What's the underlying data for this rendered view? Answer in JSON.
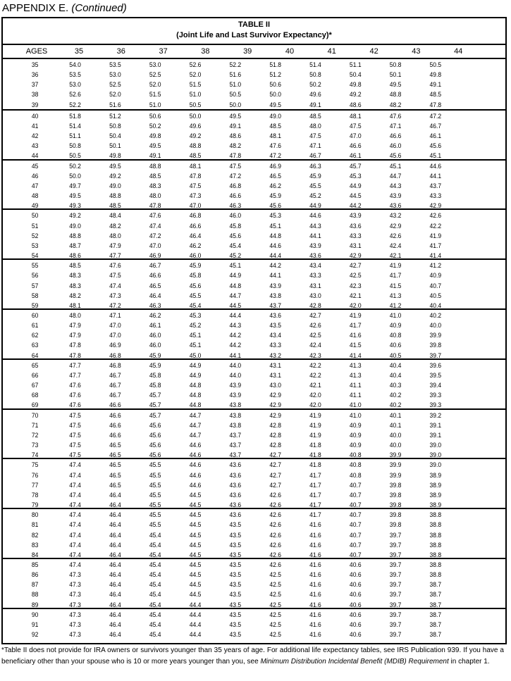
{
  "heading": {
    "main": "APPENDIX E.",
    "sub": "(Continued)"
  },
  "table": {
    "title": "TABLE II",
    "subtitle": "(Joint Life and Last Survivor Expectancy)*",
    "columns": [
      "AGES",
      "35",
      "36",
      "37",
      "38",
      "39",
      "40",
      "41",
      "42",
      "43",
      "44"
    ],
    "rows": [
      [
        "35",
        "54.0",
        "53.5",
        "53.0",
        "52.6",
        "52.2",
        "51.8",
        "51.4",
        "51.1",
        "50.8",
        "50.5"
      ],
      [
        "36",
        "53.5",
        "53.0",
        "52.5",
        "52.0",
        "51.6",
        "51.2",
        "50.8",
        "50.4",
        "50.1",
        "49.8"
      ],
      [
        "37",
        "53.0",
        "52.5",
        "52.0",
        "51.5",
        "51.0",
        "50.6",
        "50.2",
        "49.8",
        "49.5",
        "49.1"
      ],
      [
        "38",
        "52.6",
        "52.0",
        "51.5",
        "51.0",
        "50.5",
        "50.0",
        "49.6",
        "49.2",
        "48.8",
        "48.5"
      ],
      [
        "39",
        "52.2",
        "51.6",
        "51.0",
        "50.5",
        "50.0",
        "49.5",
        "49.1",
        "48.6",
        "48.2",
        "47.8"
      ],
      [
        "40",
        "51.8",
        "51.2",
        "50.6",
        "50.0",
        "49.5",
        "49.0",
        "48.5",
        "48.1",
        "47.6",
        "47.2"
      ],
      [
        "41",
        "51.4",
        "50.8",
        "50.2",
        "49.6",
        "49.1",
        "48.5",
        "48.0",
        "47.5",
        "47.1",
        "46.7"
      ],
      [
        "42",
        "51.1",
        "50.4",
        "49.8",
        "49.2",
        "48.6",
        "48.1",
        "47.5",
        "47.0",
        "46.6",
        "46.1"
      ],
      [
        "43",
        "50.8",
        "50.1",
        "49.5",
        "48.8",
        "48.2",
        "47.6",
        "47.1",
        "46.6",
        "46.0",
        "45.6"
      ],
      [
        "44",
        "50.5",
        "49.8",
        "49.1",
        "48.5",
        "47.8",
        "47.2",
        "46.7",
        "46.1",
        "45.6",
        "45.1"
      ],
      [
        "45",
        "50.2",
        "49.5",
        "48.8",
        "48.1",
        "47.5",
        "46.9",
        "46.3",
        "45.7",
        "45.1",
        "44.6"
      ],
      [
        "46",
        "50.0",
        "49.2",
        "48.5",
        "47.8",
        "47.2",
        "46.5",
        "45.9",
        "45.3",
        "44.7",
        "44.1"
      ],
      [
        "47",
        "49.7",
        "49.0",
        "48.3",
        "47.5",
        "46.8",
        "46.2",
        "45.5",
        "44.9",
        "44.3",
        "43.7"
      ],
      [
        "48",
        "49.5",
        "48.8",
        "48.0",
        "47.3",
        "46.6",
        "45.9",
        "45.2",
        "44.5",
        "43.9",
        "43.3"
      ],
      [
        "49",
        "49.3",
        "48.5",
        "47.8",
        "47.0",
        "46.3",
        "45.6",
        "44.9",
        "44.2",
        "43.6",
        "42.9"
      ],
      [
        "50",
        "49.2",
        "48.4",
        "47.6",
        "46.8",
        "46.0",
        "45.3",
        "44.6",
        "43.9",
        "43.2",
        "42.6"
      ],
      [
        "51",
        "49.0",
        "48.2",
        "47.4",
        "46.6",
        "45.8",
        "45.1",
        "44.3",
        "43.6",
        "42.9",
        "42.2"
      ],
      [
        "52",
        "48.8",
        "48.0",
        "47.2",
        "46.4",
        "45.6",
        "44.8",
        "44.1",
        "43.3",
        "42.6",
        "41.9"
      ],
      [
        "53",
        "48.7",
        "47.9",
        "47.0",
        "46.2",
        "45.4",
        "44.6",
        "43.9",
        "43.1",
        "42.4",
        "41.7"
      ],
      [
        "54",
        "48.6",
        "47.7",
        "46.9",
        "46.0",
        "45.2",
        "44.4",
        "43.6",
        "42.9",
        "42.1",
        "41.4"
      ],
      [
        "55",
        "48.5",
        "47.6",
        "46.7",
        "45.9",
        "45.1",
        "44.2",
        "43.4",
        "42.7",
        "41.9",
        "41.2"
      ],
      [
        "56",
        "48.3",
        "47.5",
        "46.6",
        "45.8",
        "44.9",
        "44.1",
        "43.3",
        "42.5",
        "41.7",
        "40.9"
      ],
      [
        "57",
        "48.3",
        "47.4",
        "46.5",
        "45.6",
        "44.8",
        "43.9",
        "43.1",
        "42.3",
        "41.5",
        "40.7"
      ],
      [
        "58",
        "48.2",
        "47.3",
        "46.4",
        "45.5",
        "44.7",
        "43.8",
        "43.0",
        "42.1",
        "41.3",
        "40.5"
      ],
      [
        "59",
        "48.1",
        "47.2",
        "46.3",
        "45.4",
        "44.5",
        "43.7",
        "42.8",
        "42.0",
        "41.2",
        "40.4"
      ],
      [
        "60",
        "48.0",
        "47.1",
        "46.2",
        "45.3",
        "44.4",
        "43.6",
        "42.7",
        "41.9",
        "41.0",
        "40.2"
      ],
      [
        "61",
        "47.9",
        "47.0",
        "46.1",
        "45.2",
        "44.3",
        "43.5",
        "42.6",
        "41.7",
        "40.9",
        "40.0"
      ],
      [
        "62",
        "47.9",
        "47.0",
        "46.0",
        "45.1",
        "44.2",
        "43.4",
        "42.5",
        "41.6",
        "40.8",
        "39.9"
      ],
      [
        "63",
        "47.8",
        "46.9",
        "46.0",
        "45.1",
        "44.2",
        "43.3",
        "42.4",
        "41.5",
        "40.6",
        "39.8"
      ],
      [
        "64",
        "47.8",
        "46.8",
        "45.9",
        "45.0",
        "44.1",
        "43.2",
        "42.3",
        "41.4",
        "40.5",
        "39.7"
      ],
      [
        "65",
        "47.7",
        "46.8",
        "45.9",
        "44.9",
        "44.0",
        "43.1",
        "42.2",
        "41.3",
        "40.4",
        "39.6"
      ],
      [
        "66",
        "47.7",
        "46.7",
        "45.8",
        "44.9",
        "44.0",
        "43.1",
        "42.2",
        "41.3",
        "40.4",
        "39.5"
      ],
      [
        "67",
        "47.6",
        "46.7",
        "45.8",
        "44.8",
        "43.9",
        "43.0",
        "42.1",
        "41.1",
        "40.3",
        "39.4"
      ],
      [
        "68",
        "47.6",
        "46.7",
        "45.7",
        "44.8",
        "43.9",
        "42.9",
        "42.0",
        "41.1",
        "40.2",
        "39.3"
      ],
      [
        "69",
        "47.6",
        "46.6",
        "45.7",
        "44.8",
        "43.8",
        "42.9",
        "42.0",
        "41.0",
        "40.2",
        "39.3"
      ],
      [
        "70",
        "47.5",
        "46.6",
        "45.7",
        "44.7",
        "43.8",
        "42.9",
        "41.9",
        "41.0",
        "40.1",
        "39.2"
      ],
      [
        "71",
        "47.5",
        "46.6",
        "45.6",
        "44.7",
        "43.8",
        "42.8",
        "41.9",
        "40.9",
        "40.1",
        "39.1"
      ],
      [
        "72",
        "47.5",
        "46.6",
        "45.6",
        "44.7",
        "43.7",
        "42.8",
        "41.9",
        "40.9",
        "40.0",
        "39.1"
      ],
      [
        "73",
        "47.5",
        "46.5",
        "45.6",
        "44.6",
        "43.7",
        "42.8",
        "41.8",
        "40.9",
        "40.0",
        "39.0"
      ],
      [
        "74",
        "47.5",
        "46.5",
        "45.6",
        "44.6",
        "43.7",
        "42.7",
        "41.8",
        "40.8",
        "39.9",
        "39.0"
      ],
      [
        "75",
        "47.4",
        "46.5",
        "45.5",
        "44.6",
        "43.6",
        "42.7",
        "41.8",
        "40.8",
        "39.9",
        "39.0"
      ],
      [
        "76",
        "47.4",
        "46.5",
        "45.5",
        "44.6",
        "43.6",
        "42.7",
        "41.7",
        "40.8",
        "39.9",
        "38.9"
      ],
      [
        "77",
        "47.4",
        "46.5",
        "45.5",
        "44.6",
        "43.6",
        "42.7",
        "41.7",
        "40.7",
        "39.8",
        "38.9"
      ],
      [
        "78",
        "47.4",
        "46.4",
        "45.5",
        "44.5",
        "43.6",
        "42.6",
        "41.7",
        "40.7",
        "39.8",
        "38.9"
      ],
      [
        "79",
        "47.4",
        "46.4",
        "45.5",
        "44.5",
        "43.6",
        "42.6",
        "41.7",
        "40.7",
        "39.8",
        "38.9"
      ],
      [
        "80",
        "47.4",
        "46.4",
        "45.5",
        "44.5",
        "43.6",
        "42.6",
        "41.7",
        "40.7",
        "39.8",
        "38.8"
      ],
      [
        "81",
        "47.4",
        "46.4",
        "45.5",
        "44.5",
        "43.5",
        "42.6",
        "41.6",
        "40.7",
        "39.8",
        "38.8"
      ],
      [
        "82",
        "47.4",
        "46.4",
        "45.4",
        "44.5",
        "43.5",
        "42.6",
        "41.6",
        "40.7",
        "39.7",
        "38.8"
      ],
      [
        "83",
        "47.4",
        "46.4",
        "45.4",
        "44.5",
        "43.5",
        "42.6",
        "41.6",
        "40.7",
        "39.7",
        "38.8"
      ],
      [
        "84",
        "47.4",
        "46.4",
        "45.4",
        "44.5",
        "43.5",
        "42.6",
        "41.6",
        "40.7",
        "39.7",
        "38.8"
      ],
      [
        "85",
        "47.4",
        "46.4",
        "45.4",
        "44.5",
        "43.5",
        "42.6",
        "41.6",
        "40.6",
        "39.7",
        "38.8"
      ],
      [
        "86",
        "47.3",
        "46.4",
        "45.4",
        "44.5",
        "43.5",
        "42.5",
        "41.6",
        "40.6",
        "39.7",
        "38.8"
      ],
      [
        "87",
        "47.3",
        "46.4",
        "45.4",
        "44.5",
        "43.5",
        "42.5",
        "41.6",
        "40.6",
        "39.7",
        "38.7"
      ],
      [
        "88",
        "47.3",
        "46.4",
        "45.4",
        "44.5",
        "43.5",
        "42.5",
        "41.6",
        "40.6",
        "39.7",
        "38.7"
      ],
      [
        "89",
        "47.3",
        "46.4",
        "45.4",
        "44.4",
        "43.5",
        "42.5",
        "41.6",
        "40.6",
        "39.7",
        "38.7"
      ],
      [
        "90",
        "47.3",
        "46.4",
        "45.4",
        "44.4",
        "43.5",
        "42.5",
        "41.6",
        "40.6",
        "39.7",
        "38.7"
      ],
      [
        "91",
        "47.3",
        "46.4",
        "45.4",
        "44.4",
        "43.5",
        "42.5",
        "41.6",
        "40.6",
        "39.7",
        "38.7"
      ],
      [
        "92",
        "47.3",
        "46.4",
        "45.4",
        "44.4",
        "43.5",
        "42.5",
        "41.6",
        "40.6",
        "39.7",
        "38.7"
      ]
    ]
  },
  "footnote": {
    "part1": "*Table II does not provide for IRA owners or survivors younger than 35 years of age. For additional life expectancy tables, see IRS Publication 939. If you have a beneficiary other than your spouse who is 10 or more years younger than you, see ",
    "italic": "Minimum Distribution Incidental Benefit (MDIB) Requirement",
    "part2": " in chapter 1."
  }
}
